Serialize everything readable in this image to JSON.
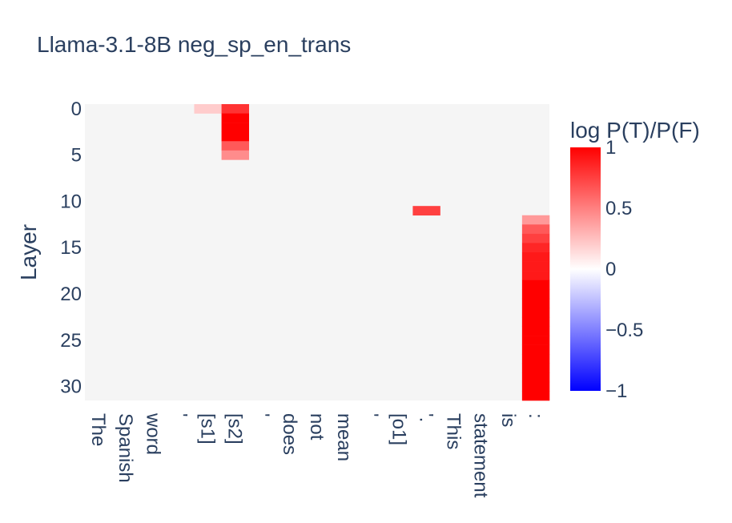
{
  "chart_data": {
    "type": "heatmap",
    "title": "Llama-3.1-8B neg_sp_en_trans",
    "ylabel": "Layer",
    "xlabel": "",
    "x_tokens": [
      "The",
      "Spanish",
      "word",
      "'",
      "[s1]",
      "[s2]",
      "'",
      "does",
      "not",
      "mean",
      "'",
      "[o1]",
      "'.",
      "This",
      "statement",
      "is",
      ":"
    ],
    "y_range": [
      0,
      31
    ],
    "y_ticks": [
      0,
      5,
      10,
      15,
      20,
      25,
      30
    ],
    "background_value_color": "#f5f5f5",
    "colorbar": {
      "title": "log P(T)/P(F)",
      "range": [
        -1,
        1
      ],
      "ticks": [
        "1",
        "0.5",
        "0",
        "−0.5",
        "−1"
      ],
      "tick_values": [
        1,
        0.5,
        0,
        -0.5,
        -1
      ],
      "colors": [
        "#0000ff",
        "#ffffff",
        "#ff0000"
      ]
    },
    "cells": [
      {
        "token_index": 4,
        "layer": 0,
        "value": 0.2
      },
      {
        "token_index": 5,
        "layer": 0,
        "value": 0.8
      },
      {
        "token_index": 5,
        "layer": 1,
        "value": 1.0
      },
      {
        "token_index": 5,
        "layer": 2,
        "value": 1.0
      },
      {
        "token_index": 5,
        "layer": 3,
        "value": 1.0
      },
      {
        "token_index": 5,
        "layer": 4,
        "value": 0.65
      },
      {
        "token_index": 5,
        "layer": 5,
        "value": 0.45
      },
      {
        "token_index": 12,
        "layer": 11,
        "value": 0.75
      },
      {
        "token_index": 16,
        "layer": 12,
        "value": 0.4
      },
      {
        "token_index": 16,
        "layer": 13,
        "value": 0.65
      },
      {
        "token_index": 16,
        "layer": 14,
        "value": 0.75
      },
      {
        "token_index": 16,
        "layer": 15,
        "value": 0.85
      },
      {
        "token_index": 16,
        "layer": 16,
        "value": 0.9
      },
      {
        "token_index": 16,
        "layer": 17,
        "value": 0.9
      },
      {
        "token_index": 16,
        "layer": 18,
        "value": 0.9
      },
      {
        "token_index": 16,
        "layer": 19,
        "value": 1.0
      },
      {
        "token_index": 16,
        "layer": 20,
        "value": 1.0
      },
      {
        "token_index": 16,
        "layer": 21,
        "value": 1.0
      },
      {
        "token_index": 16,
        "layer": 22,
        "value": 1.0
      },
      {
        "token_index": 16,
        "layer": 23,
        "value": 1.0
      },
      {
        "token_index": 16,
        "layer": 24,
        "value": 1.0
      },
      {
        "token_index": 16,
        "layer": 25,
        "value": 1.0
      },
      {
        "token_index": 16,
        "layer": 26,
        "value": 1.0
      },
      {
        "token_index": 16,
        "layer": 27,
        "value": 1.0
      },
      {
        "token_index": 16,
        "layer": 28,
        "value": 1.0
      },
      {
        "token_index": 16,
        "layer": 29,
        "value": 1.0
      },
      {
        "token_index": 16,
        "layer": 30,
        "value": 1.0
      },
      {
        "token_index": 16,
        "layer": 31,
        "value": 1.0
      }
    ]
  }
}
